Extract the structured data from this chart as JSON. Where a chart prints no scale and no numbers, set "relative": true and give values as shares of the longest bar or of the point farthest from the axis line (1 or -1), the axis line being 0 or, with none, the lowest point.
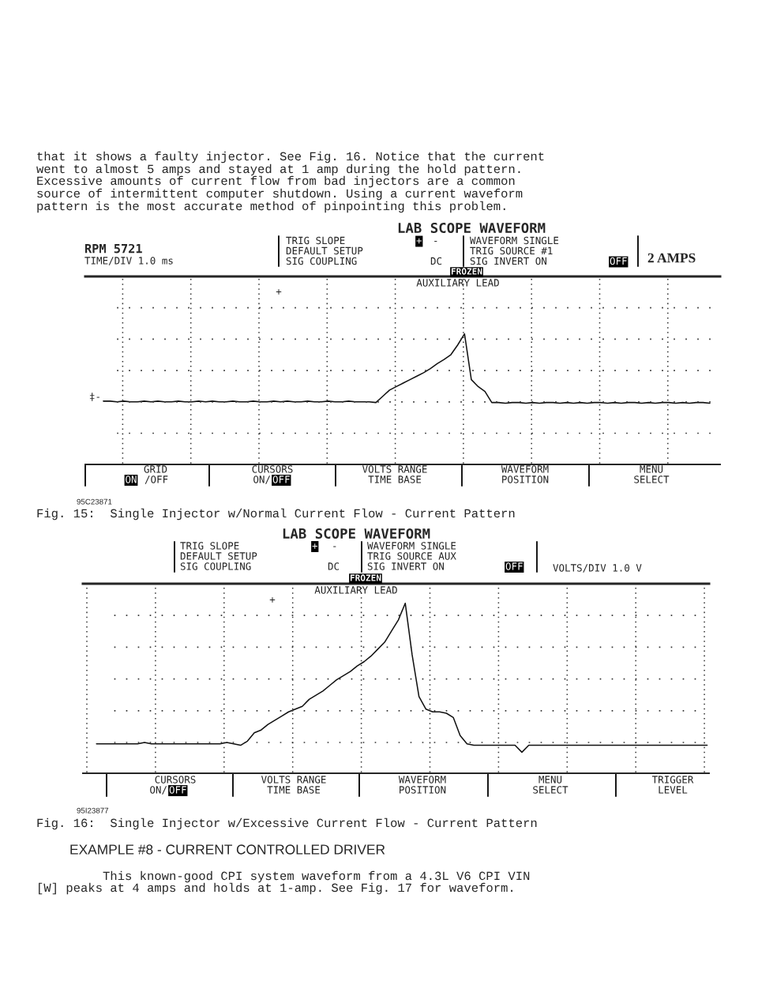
{
  "chart_data": [
    {
      "type": "line",
      "relative": true,
      "grid": true,
      "title": "LAB SCOPE WAVEFORM",
      "categories": [
        null,
        null,
        null,
        null,
        null,
        null,
        null,
        null,
        null,
        null,
        null,
        null,
        null,
        null,
        null,
        null,
        null,
        null,
        null,
        null,
        null,
        null,
        null,
        null,
        null,
        null,
        null,
        null,
        null,
        null,
        null,
        null,
        null,
        null,
        null,
        null,
        null,
        null,
        null,
        null,
        null,
        null,
        null,
        null,
        null,
        null,
        null,
        null,
        null,
        null,
        null,
        null,
        null,
        null,
        null,
        null,
        null,
        null,
        null,
        null,
        null,
        null,
        null,
        null,
        null,
        null,
        null,
        null,
        null,
        null,
        null,
        null,
        null,
        null,
        null,
        null,
        null,
        null,
        null,
        null,
        null,
        null,
        null,
        null,
        null,
        null,
        null,
        null,
        null,
        null
      ],
      "series": [
        {
          "color": "#111111",
          "values": [
            0.03,
            0.03,
            0.02,
            0.03,
            0.02,
            0.02,
            0.03,
            0.02,
            0.03,
            0.02,
            0.02,
            0.03,
            0.02,
            0.02,
            0.03,
            0.02,
            0.03,
            0.02,
            0.02,
            0.03,
            0.02,
            0.02,
            0.03,
            0.02,
            0.02,
            0.03,
            0.02,
            0.03,
            0.02,
            0.02,
            0.03,
            0.02,
            0.02,
            0.03,
            0.02,
            0.02,
            0.03,
            0.02,
            0.02,
            0.02,
            0.01,
            0.1,
            0.19,
            0.24,
            0.29,
            0.34,
            0.39,
            0.44,
            0.5,
            0.57,
            0.63,
            0.7,
            0.84,
            1,
            0.34,
            0.24,
            0.17,
            0.01,
            0.01,
            0,
            0.01,
            0.01,
            0,
            0.01,
            0,
            0.01,
            0.01,
            0,
            0.01,
            0,
            0.01,
            0,
            0.01,
            0.01,
            0,
            0.01,
            0,
            0.01,
            0.01,
            0,
            0.01,
            0,
            0.01,
            0.01,
            0,
            0.01,
            0,
            0.01,
            0.01,
            0
          ]
        }
      ],
      "annotations": [
        "that it shows a faulty injector. See Fig. 16. Notice that the current",
        "went to almost 5 amps and stayed at 1 amp during the hold pattern.",
        "Excessive amounts of current flow from bad injectors are a common",
        "source of intermittent computer shutdown. Using a current waveform",
        "pattern is the most accurate method of pinpointing this problem.",
        "RPM 5721",
        "TIME/DIV 1.0 ms",
        "TRIG SLOPE",
        "+",
        "-",
        "DEFAULT SETUP",
        "SIG COUPLING",
        "DC",
        "WAVEFORM SINGLE",
        "TRIG SOURCE #1",
        "SIG INVERT ON",
        "OFF",
        "2 AMPS",
        "FROZEN",
        "AUXILIARY LEAD",
        "+",
        "‡-",
        "GRID",
        "ON",
        "/OFF",
        "CURSORS",
        "ON/",
        "OFF",
        "VOLTS RANGE",
        "TIME BASE",
        "WAVEFORM",
        "POSITION",
        "MENU",
        "SELECT",
        "95C23871",
        "Fig. 15:  Single Injector w/Normal Current Flow - Current Pattern"
      ]
    },
    {
      "type": "line",
      "relative": true,
      "grid": true,
      "title": "LAB SCOPE WAVEFORM",
      "categories": [
        null,
        null,
        null,
        null,
        null,
        null,
        null,
        null,
        null,
        null,
        null,
        null,
        null,
        null,
        null,
        null,
        null,
        null,
        null,
        null,
        null,
        null,
        null,
        null,
        null,
        null,
        null,
        null,
        null,
        null,
        null,
        null,
        null,
        null,
        null,
        null,
        null,
        null,
        null,
        null,
        null,
        null,
        null,
        null,
        null,
        null,
        null,
        null,
        null,
        null,
        null,
        null,
        null,
        null,
        null,
        null,
        null,
        null,
        null,
        null,
        null,
        null,
        null,
        null,
        null,
        null,
        null,
        null,
        null,
        null,
        null,
        null,
        null,
        null,
        null,
        null,
        null,
        null,
        null,
        null,
        null,
        null,
        null,
        null,
        null,
        null,
        null,
        null,
        null,
        null
      ],
      "series": [
        {
          "color": "#111111",
          "values": [
            -0.01,
            -0.01,
            -0.01,
            -0.01,
            -0.01,
            -0.01,
            -0.01,
            0,
            -0.01,
            -0.01,
            -0.01,
            -0.01,
            -0.01,
            -0.01,
            -0.01,
            -0.01,
            -0.01,
            -0.01,
            -0.01,
            0,
            -0.01,
            -0.02,
            0.01,
            0.07,
            0.09,
            0.13,
            0.16,
            0.19,
            0.22,
            0.24,
            0.26,
            0.31,
            0.34,
            0.37,
            0.41,
            0.45,
            0.48,
            0.51,
            0.55,
            0.58,
            0.62,
            0.67,
            0.72,
            0.8,
            0.88,
            1,
            0.63,
            0.33,
            0.24,
            0.22,
            0.22,
            0.21,
            0.18,
            0.05,
            -0.01,
            -0.02,
            -0.02,
            -0.02,
            -0.02,
            -0.02,
            -0.02,
            -0.02,
            -0.07,
            -0.02,
            -0.02,
            -0.02,
            -0.02,
            -0.02,
            -0.02,
            -0.02,
            -0.02,
            -0.02,
            -0.02,
            -0.02,
            -0.02,
            -0.02,
            -0.02,
            -0.02,
            -0.02,
            -0.02,
            -0.02,
            -0.02,
            -0.02,
            -0.02,
            -0.02,
            -0.02,
            -0.02,
            -0.02,
            -0.02,
            -0.02
          ]
        }
      ],
      "annotations": [
        "TRIG SLOPE",
        "+",
        "-",
        "DEFAULT SETUP",
        "SIG COUPLING",
        "DC",
        "WAVEFORM SINGLE",
        "TRIG SOURCE AUX",
        "SIG INVERT ON",
        "OFF",
        "VOLTS/DIV 1.0 V",
        "FROZEN",
        "AUXILIARY LEAD",
        "+",
        "CURSORS",
        "ON/",
        "OFF",
        "VOLTS RANGE",
        "TIME BASE",
        "WAVEFORM",
        "POSITION",
        "MENU",
        "SELECT",
        "TRIGGER",
        "LEVEL",
        "95I23877",
        "Fig. 16:  Single Injector w/Excessive Current Flow - Current Pattern",
        "EXAMPLE #8 - CURRENT CONTROLLED DRIVER",
        "This known-good CPI system waveform from a 4.3L V6 CPI VIN",
        "[W] peaks at 4 amps and holds at 1-amp. See Fig. 17 for waveform."
      ]
    }
  ]
}
